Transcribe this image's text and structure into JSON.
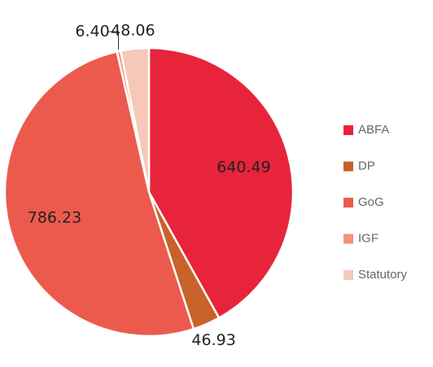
{
  "chart_data": {
    "type": "pie",
    "categories": [
      "ABFA",
      "DP",
      "GoG",
      "IGF",
      "Statutory"
    ],
    "values": [
      640.49,
      46.93,
      786.23,
      6.4,
      48.06
    ],
    "value_labels": [
      "640.49",
      "46.93",
      "786.23",
      "6.40",
      "48.06"
    ],
    "colors": [
      "#e8243a",
      "#c8622a",
      "#ec5a4e",
      "#f0957a",
      "#f6c8b8"
    ],
    "legend": "right"
  }
}
